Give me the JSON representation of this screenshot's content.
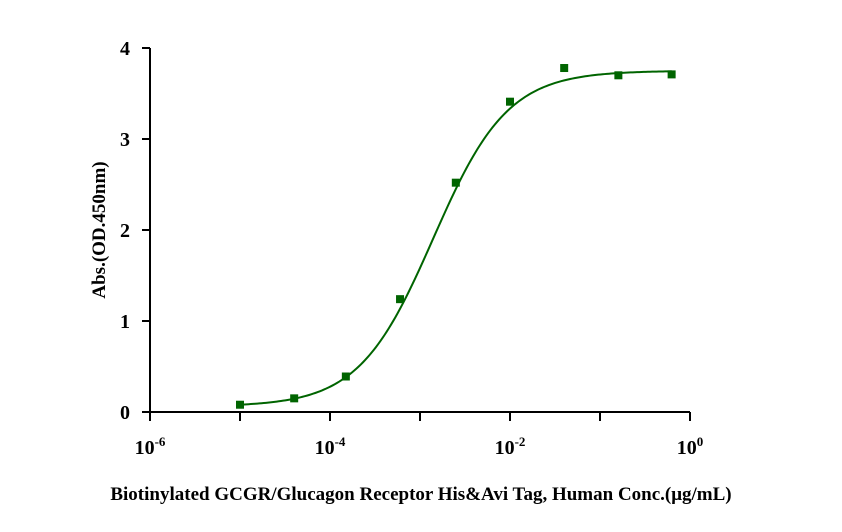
{
  "chart_data": {
    "type": "scatter",
    "xlabel": "Biotinylated GCGR/Glucagon Receptor His&Avi Tag, Human Conc.(μg/mL)",
    "ylabel": "Abs.(OD.450nm)",
    "xscale": "log10",
    "xlim": [
      1e-06,
      1
    ],
    "ylim": [
      0,
      4
    ],
    "x_ticks": [
      {
        "base": "10",
        "exp": "-6",
        "value": 1e-06
      },
      {
        "base": "10",
        "exp": "-4",
        "value": 0.0001
      },
      {
        "base": "10",
        "exp": "-2",
        "value": 0.01
      },
      {
        "base": "10",
        "exp": "0",
        "value": 1
      }
    ],
    "y_ticks": [
      "0",
      "1",
      "2",
      "3",
      "4"
    ],
    "series": [
      {
        "color": "#006400",
        "marker": "square",
        "fit": "4PL sigmoid",
        "points": [
          {
            "x": 1e-05,
            "y": 0.08
          },
          {
            "x": 4e-05,
            "y": 0.15
          },
          {
            "x": 0.00015,
            "y": 0.39
          },
          {
            "x": 0.0006,
            "y": 1.24
          },
          {
            "x": 0.0025,
            "y": 2.52
          },
          {
            "x": 0.01,
            "y": 3.41
          },
          {
            "x": 0.04,
            "y": 3.78
          },
          {
            "x": 0.16,
            "y": 3.7
          },
          {
            "x": 0.625,
            "y": 3.71
          }
        ],
        "fit_params": {
          "bottom": 0.06,
          "top": 3.75,
          "ec50": 0.0014,
          "hill": 1.05
        }
      }
    ],
    "grid": false,
    "legend": "none"
  }
}
